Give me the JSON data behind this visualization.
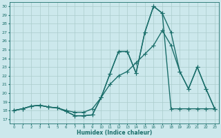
{
  "xlabel": "Humidex (Indice chaleur)",
  "xlim": [
    -0.5,
    23.5
  ],
  "ylim": [
    16.5,
    30.5
  ],
  "xticks": [
    0,
    1,
    2,
    3,
    4,
    5,
    6,
    7,
    8,
    9,
    10,
    11,
    12,
    13,
    14,
    15,
    16,
    17,
    18,
    19,
    20,
    21,
    22,
    23
  ],
  "yticks": [
    17,
    18,
    19,
    20,
    21,
    22,
    23,
    24,
    25,
    26,
    27,
    28,
    29,
    30
  ],
  "bg_color": "#cce8ec",
  "grid_color": "#aacccc",
  "line_color": "#1a6e6a",
  "line_width": 1.0,
  "marker": "+",
  "marker_size": 4,
  "series": [
    [
      18.0,
      18.2,
      18.5,
      18.6,
      18.4,
      18.3,
      17.9,
      17.4,
      17.4,
      17.5,
      19.5,
      22.2,
      24.8,
      24.8,
      22.3,
      27.0,
      30.0,
      29.2,
      18.2,
      18.2,
      18.2,
      18.2,
      18.2,
      18.2
    ],
    [
      18.0,
      18.2,
      18.5,
      18.6,
      18.4,
      18.3,
      17.9,
      17.4,
      17.4,
      17.5,
      19.5,
      22.2,
      24.8,
      24.8,
      22.3,
      27.0,
      30.0,
      29.2,
      27.0,
      22.5,
      20.5,
      23.0,
      20.5,
      18.2
    ],
    [
      18.0,
      18.2,
      18.5,
      18.6,
      18.4,
      18.3,
      18.0,
      17.8,
      17.8,
      18.2,
      19.5,
      21.0,
      22.0,
      22.5,
      23.5,
      24.5,
      25.5,
      27.2,
      25.5,
      22.5,
      20.5,
      23.0,
      20.5,
      18.2
    ]
  ]
}
